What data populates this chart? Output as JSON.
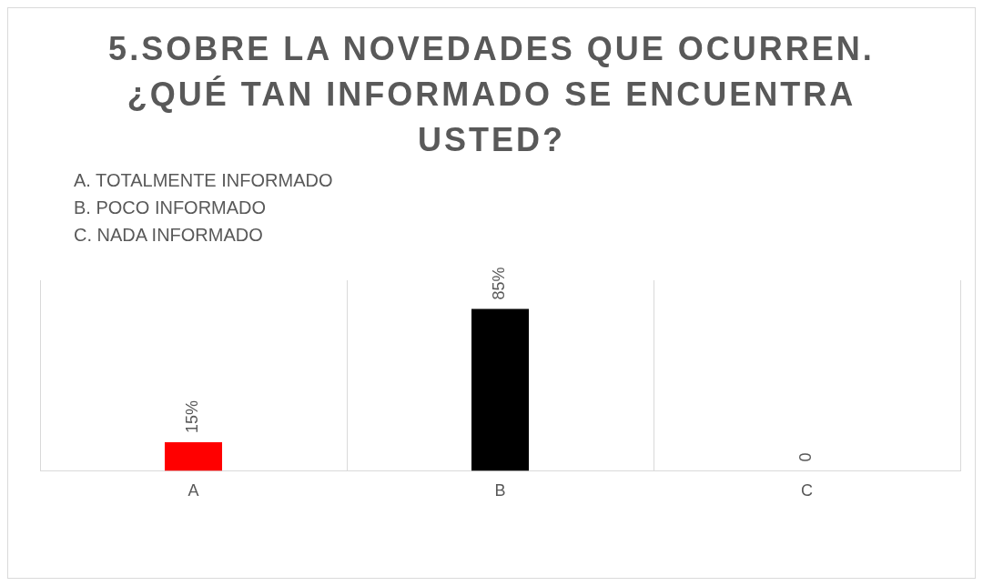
{
  "chart_data": {
    "type": "bar",
    "title": "5.SOBRE LA NOVEDADES QUE OCURREN. ¿QUÉ TAN INFORMADO SE ENCUENTRA USTED?",
    "annotations": [
      "A. TOTALMENTE INFORMADO",
      "B. POCO INFORMADO",
      "C. NADA INFORMADO"
    ],
    "categories": [
      "A",
      "B",
      "C"
    ],
    "values": [
      15,
      85,
      0
    ],
    "colors": [
      "#ff0000",
      "#000000",
      "#a5a5a5"
    ],
    "value_labels": [
      "15%",
      "85%",
      "0"
    ],
    "ylim": [
      0,
      100
    ],
    "tick_labels": "x",
    "grid": "x",
    "legend": false
  }
}
